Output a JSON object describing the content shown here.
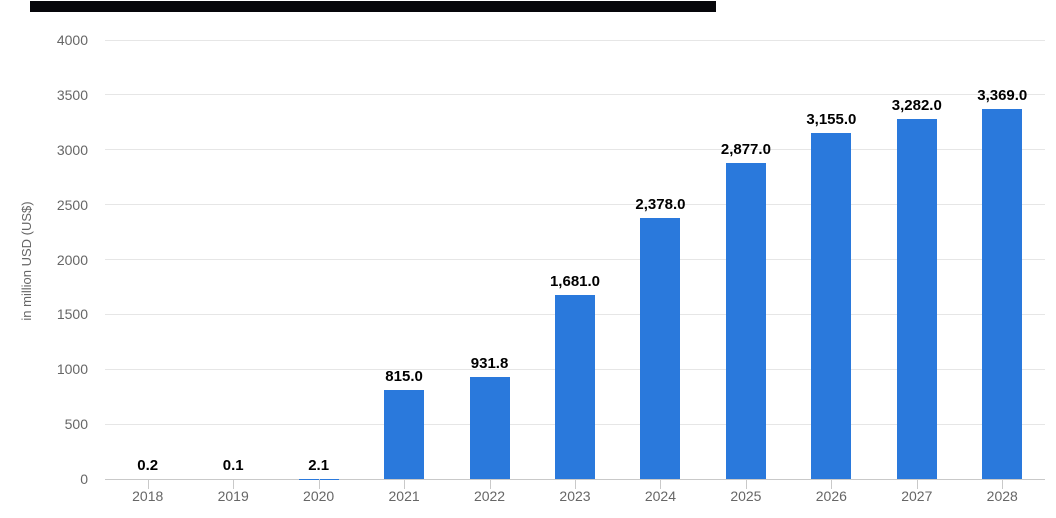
{
  "page": {
    "background_color": "#ffffff"
  },
  "redacted_title": {
    "present": true,
    "color": "#07070b"
  },
  "chart_data": {
    "type": "bar",
    "categories": [
      "2018",
      "2019",
      "2020",
      "2021",
      "2022",
      "2023",
      "2024",
      "2025",
      "2026",
      "2027",
      "2028"
    ],
    "values": [
      0.2,
      0.1,
      2.1,
      815.0,
      931.8,
      1681.0,
      2378.0,
      2877.0,
      3155.0,
      3282.0,
      3369.0
    ],
    "value_labels": [
      "0.2",
      "0.1",
      "2.1",
      "815.0",
      "931.8",
      "1,681.0",
      "2,378.0",
      "2,877.0",
      "3,155.0",
      "3,282.0",
      "3,369.0"
    ],
    "xlabel": "",
    "ylabel": "in million USD (US$)",
    "ylim": [
      0,
      4000
    ],
    "yticks": [
      0,
      500,
      1000,
      1500,
      2000,
      2500,
      3000,
      3500,
      4000
    ],
    "grid": true,
    "legend_position": "none",
    "bar_color": "#2A79DC",
    "grid_color": "#e6e6e6",
    "axis_line_color": "#c9c9c9",
    "tick_color": "#c9c9c9",
    "axis_label_color": "#666666",
    "value_label_color": "#000000"
  }
}
